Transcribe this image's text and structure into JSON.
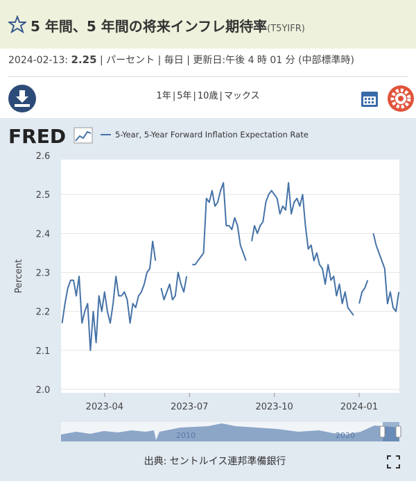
{
  "header": {
    "title": "5 年間、5 年間の将来インフレ期待率",
    "series_id": "(T5YIFR)",
    "date": "2024-02-13:",
    "latest_value": 2.25,
    "meta": "| パーセント | 毎日 | 更新日:午後 4 時 01 分 (中部標準時)"
  },
  "toolbar": {
    "ranges": [
      "1年",
      "5年",
      "10歳",
      "マックス"
    ],
    "separator": "|"
  },
  "brand": "FRED",
  "source": "出典: セントルイス連邦準備銀行",
  "navigator": {
    "labels": [
      "2010",
      "2020"
    ]
  },
  "chart_data": {
    "type": "line",
    "y_label": "Percent",
    "grid": true,
    "xlim": [
      1.46,
      13.42
    ],
    "xticks": [
      {
        "value": 3,
        "label": "2023-04"
      },
      {
        "value": 6,
        "label": "2023-07"
      },
      {
        "value": 9,
        "label": "2023-10"
      },
      {
        "value": 12,
        "label": "2024-01"
      }
    ],
    "ylim": [
      2.0,
      2.6
    ],
    "yticks": [
      {
        "value": 2,
        "label": "2.0"
      },
      2.1,
      2.2,
      2.3,
      2.4,
      2.5,
      2.6
    ],
    "x": [
      1.5,
      1.6,
      1.7,
      1.8,
      1.9,
      2.0,
      2.1,
      2.2,
      2.3,
      2.4,
      2.5,
      2.6,
      2.7,
      2.8,
      2.9,
      3.0,
      3.1,
      3.2,
      3.3,
      3.4,
      3.5,
      3.6,
      3.7,
      3.8,
      3.9,
      4.0,
      4.1,
      4.2,
      4.3,
      4.4,
      4.5,
      4.6,
      4.7,
      4.8,
      4.9,
      5.0,
      5.1,
      5.2,
      5.3,
      5.4,
      5.5,
      5.6,
      5.7,
      5.8,
      5.9,
      6.0,
      6.1,
      6.2,
      6.3,
      6.4,
      6.5,
      6.6,
      6.7,
      6.8,
      6.9,
      7.0,
      7.1,
      7.2,
      7.3,
      7.4,
      7.5,
      7.6,
      7.7,
      7.8,
      7.9,
      8.0,
      8.1,
      8.2,
      8.3,
      8.4,
      8.5,
      8.6,
      8.7,
      8.8,
      8.9,
      9.0,
      9.1,
      9.2,
      9.3,
      9.4,
      9.5,
      9.6,
      9.7,
      9.8,
      9.9,
      10.0,
      10.1,
      10.2,
      10.3,
      10.4,
      10.5,
      10.6,
      10.7,
      10.8,
      10.9,
      11.0,
      11.1,
      11.2,
      11.3,
      11.4,
      11.5,
      11.6,
      11.7,
      11.8,
      11.9,
      12.0,
      12.1,
      12.2,
      12.3,
      12.4,
      12.5,
      12.6,
      12.7,
      12.8,
      12.9,
      13.0,
      13.1,
      13.2,
      13.3,
      13.4
    ],
    "series": [
      {
        "name": "5-Year, 5-Year Forward Inflation Expectation Rate",
        "color": "#4572a7",
        "values": [
          2.17,
          2.22,
          2.26,
          2.28,
          2.28,
          2.24,
          2.29,
          2.17,
          2.2,
          2.22,
          2.1,
          2.2,
          2.12,
          2.24,
          2.2,
          2.25,
          2.2,
          2.17,
          2.22,
          2.29,
          2.24,
          2.24,
          2.25,
          2.23,
          2.17,
          2.22,
          2.21,
          2.24,
          2.25,
          2.27,
          2.3,
          2.31,
          2.38,
          2.33,
          null,
          2.26,
          2.23,
          2.25,
          2.27,
          2.23,
          2.24,
          2.3,
          2.27,
          2.25,
          2.29,
          null,
          2.32,
          2.32,
          2.33,
          2.34,
          2.35,
          2.49,
          2.48,
          2.51,
          2.47,
          2.48,
          2.51,
          2.53,
          2.42,
          2.42,
          2.41,
          2.44,
          2.42,
          2.37,
          2.35,
          2.33,
          null,
          2.38,
          2.42,
          2.4,
          2.42,
          2.43,
          2.48,
          2.5,
          2.51,
          2.5,
          2.49,
          2.45,
          2.47,
          2.46,
          2.53,
          2.45,
          2.48,
          2.49,
          2.47,
          2.5,
          2.42,
          2.36,
          2.37,
          2.33,
          2.35,
          2.32,
          2.31,
          2.27,
          2.32,
          2.28,
          2.29,
          2.24,
          2.27,
          2.22,
          2.25,
          2.21,
          2.2,
          2.19,
          null,
          2.22,
          2.25,
          2.26,
          2.28,
          null,
          2.4,
          2.37,
          2.35,
          2.33,
          2.31,
          2.22,
          2.25,
          2.21,
          2.2,
          2.25
        ]
      }
    ]
  }
}
